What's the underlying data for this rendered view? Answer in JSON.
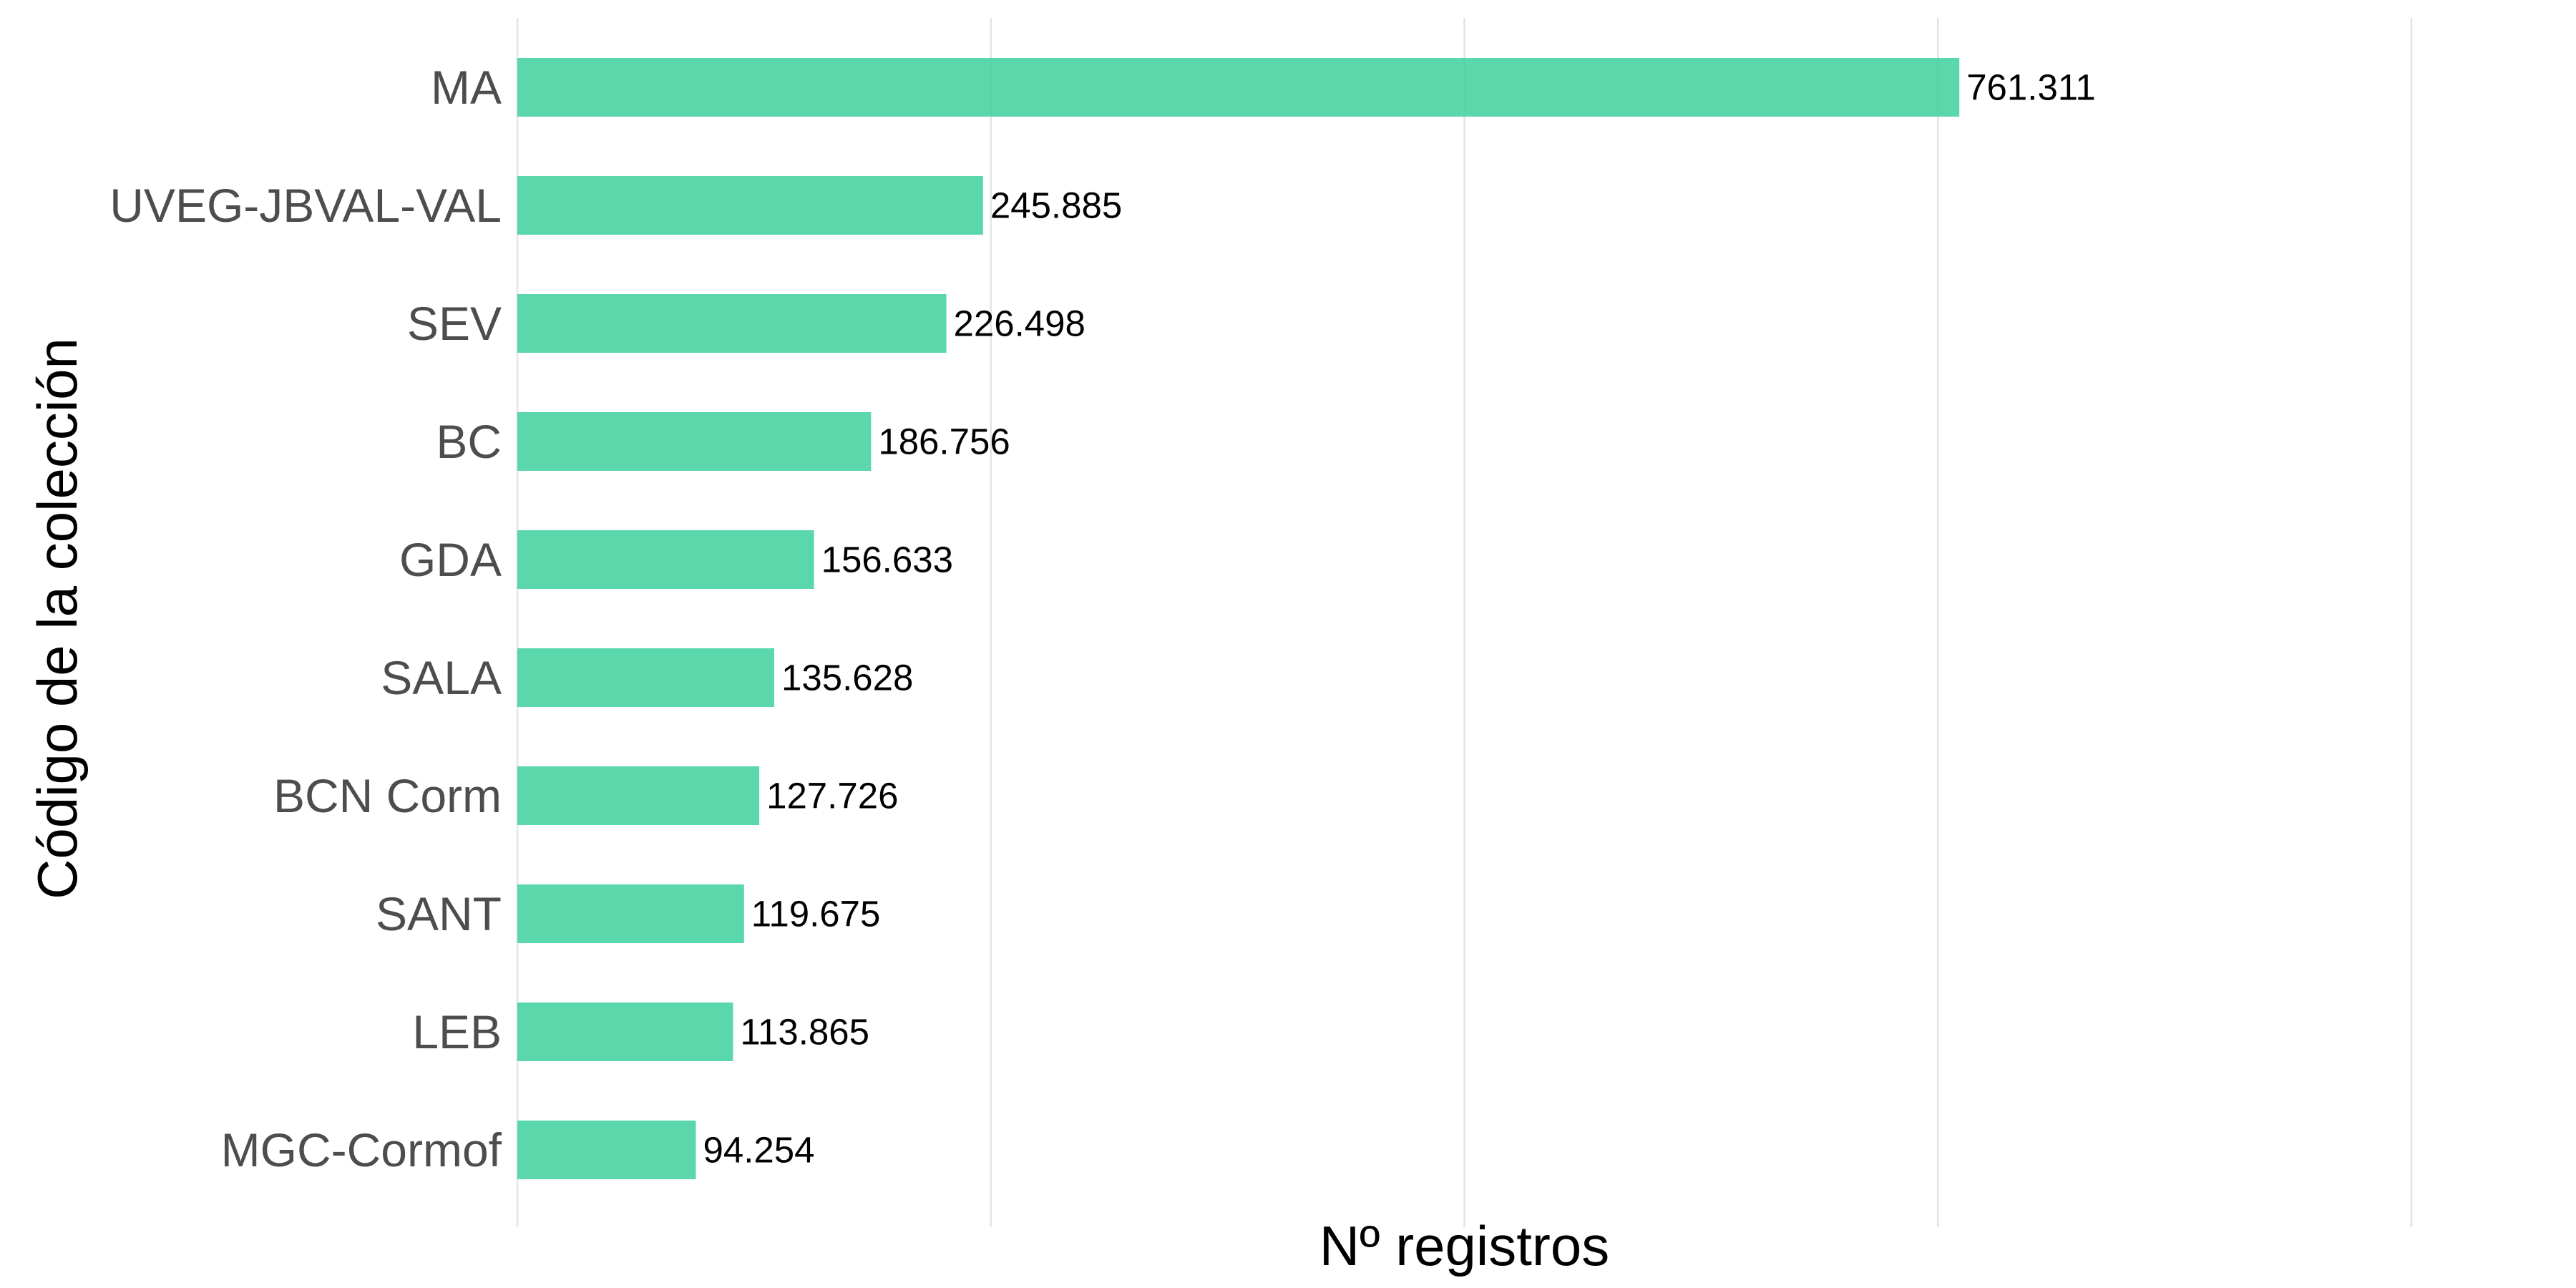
{
  "chart_data": {
    "type": "bar",
    "orientation": "horizontal",
    "xlabel": "Nº registros",
    "ylabel": "Código de la colección",
    "xlim": [
      0,
      1000000
    ],
    "x_gridlines": [
      0,
      250000,
      500000,
      750000,
      1000000
    ],
    "x_tick_labels_shown": false,
    "grid": true,
    "legend": "none",
    "bar_color": "#3dd09c",
    "categories": [
      "MA",
      "UVEG-JBVAL-VAL",
      "SEV",
      "BC",
      "GDA",
      "SALA",
      "BCN Corm",
      "SANT",
      "LEB",
      "MGC-Cormof"
    ],
    "values": [
      761311,
      245885,
      226498,
      186756,
      156633,
      135628,
      127726,
      119675,
      113865,
      94254
    ],
    "value_labels": [
      "761.311",
      "245.885",
      "226.498",
      "186.756",
      "156.633",
      "135.628",
      "127.726",
      "119.675",
      "113.865",
      "94.254"
    ]
  }
}
